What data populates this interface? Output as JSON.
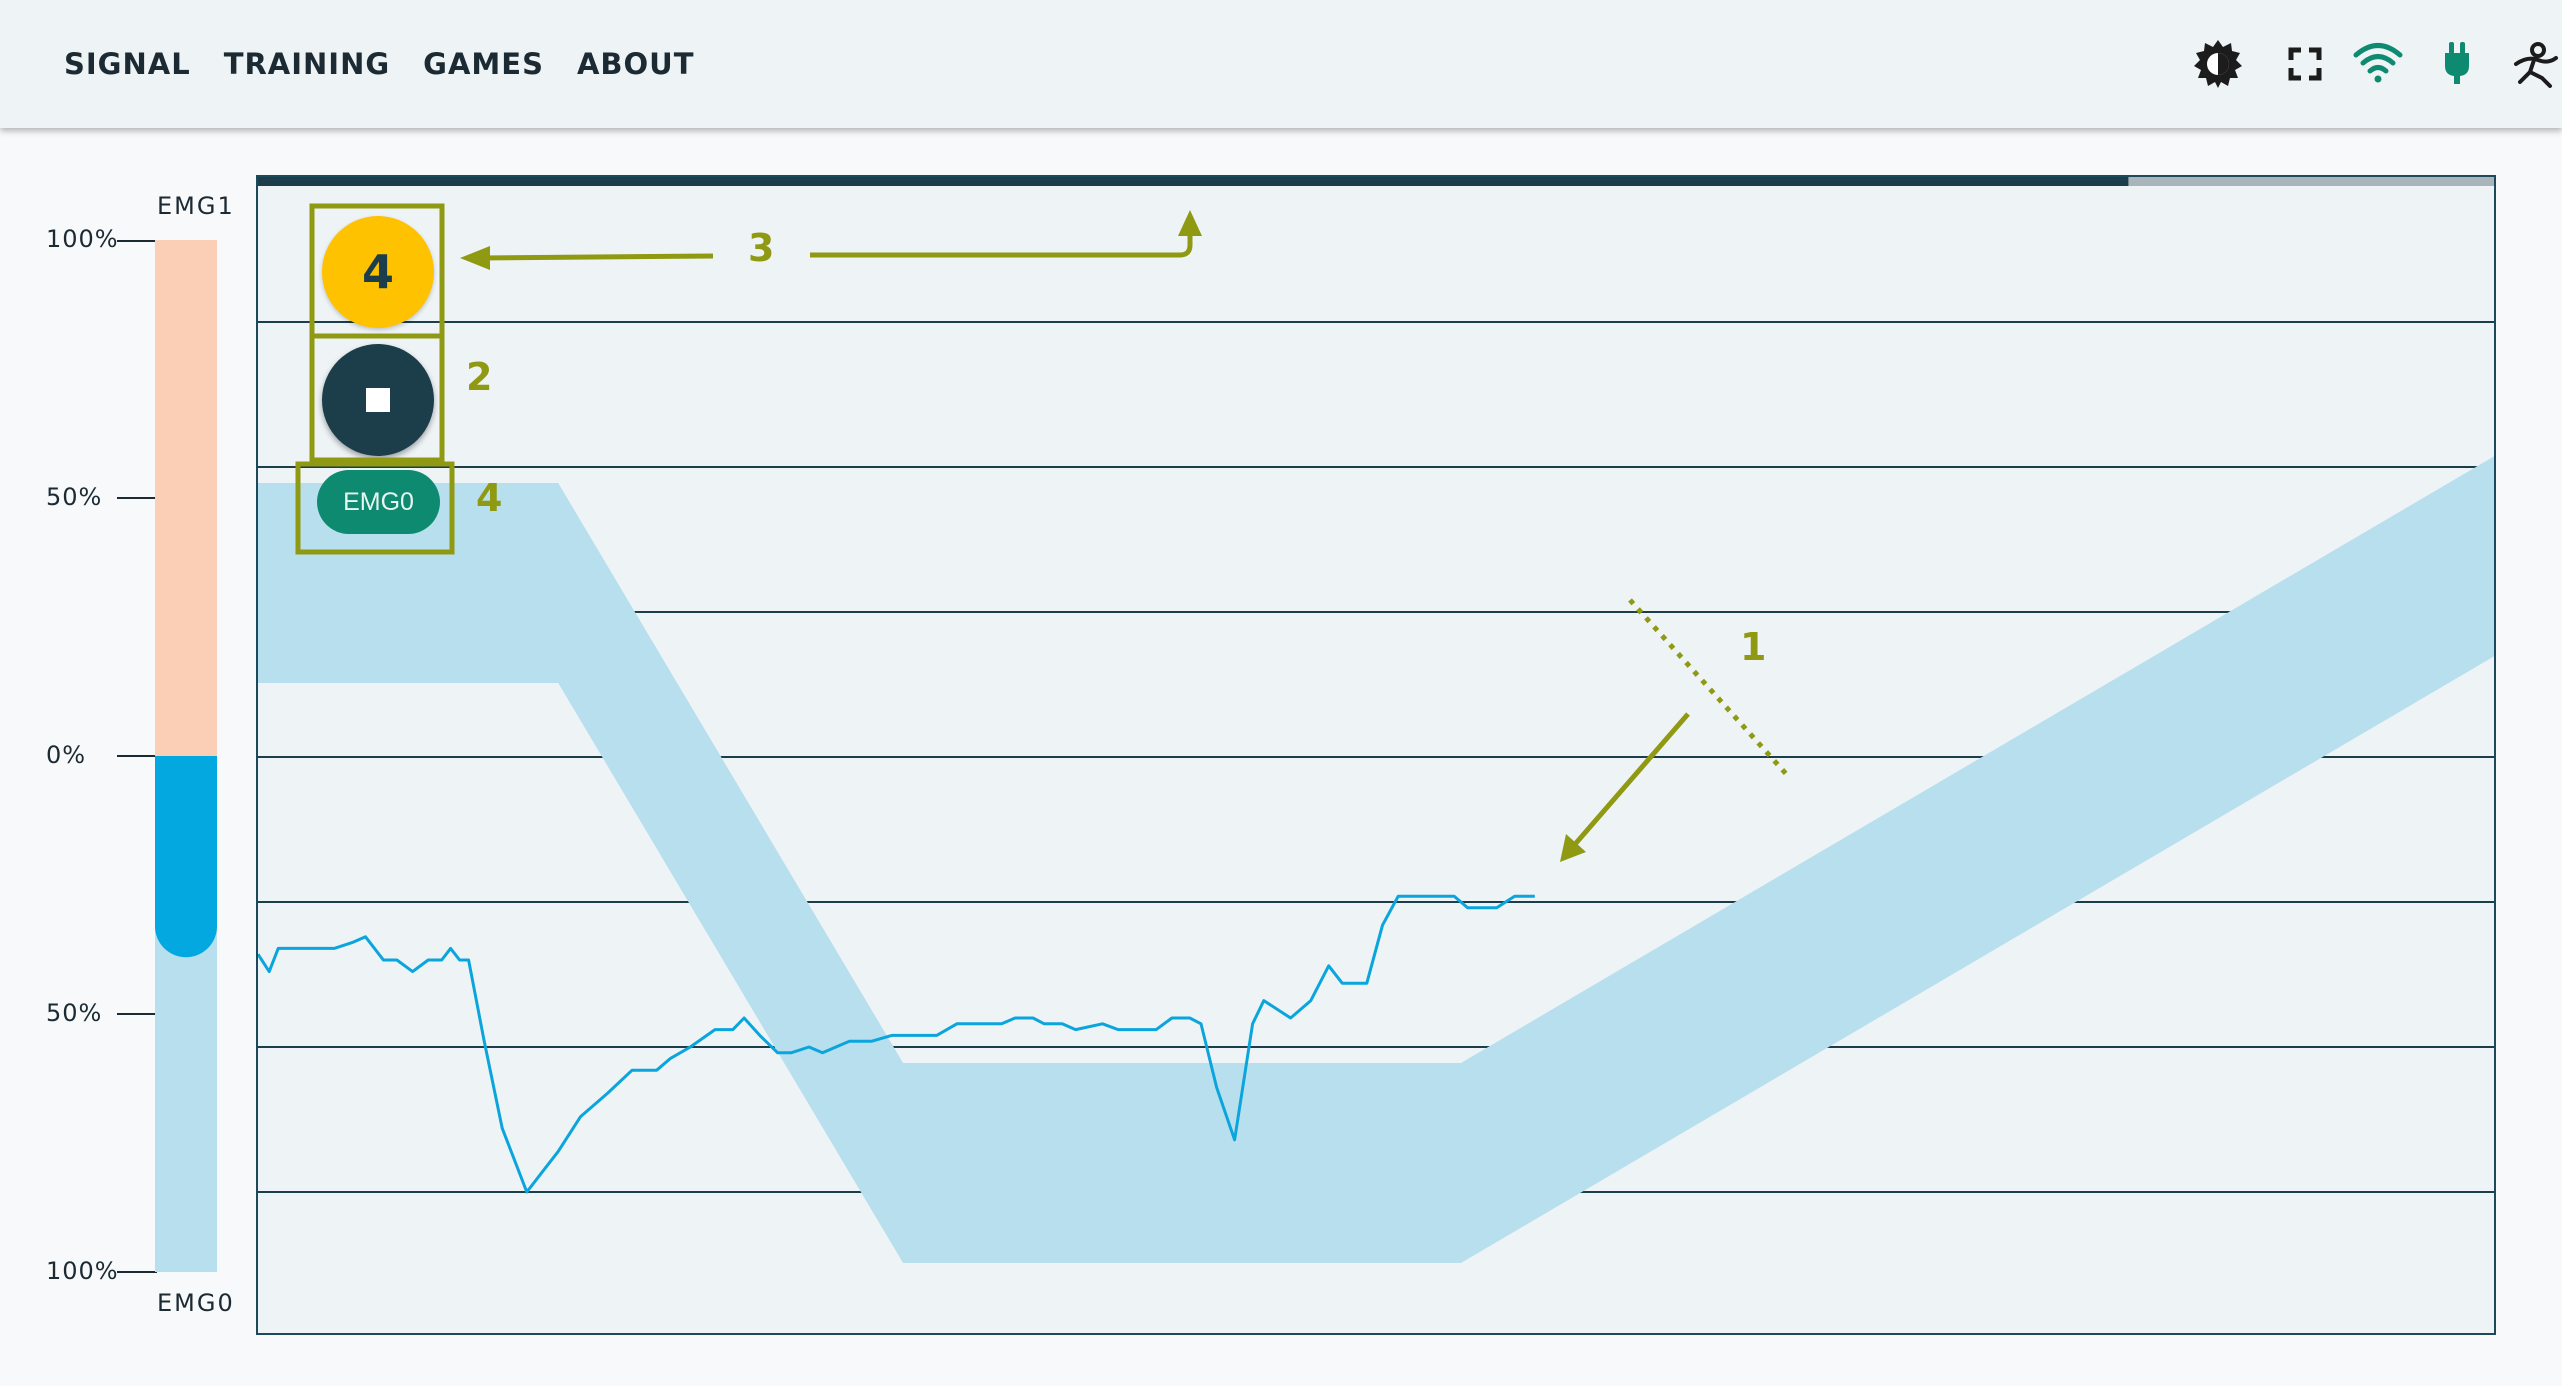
{
  "nav": {
    "items": [
      "SIGNAL",
      "TRAINING",
      "GAMES",
      "ABOUT"
    ]
  },
  "toolbar_icons": [
    "theme-toggle-icon",
    "fullscreen-icon",
    "wifi-icon",
    "power-plug-icon",
    "settings-figure-icon"
  ],
  "colors": {
    "accent_green": "#0e8a70",
    "signal_blue": "#0aa5dd",
    "target_band": "#b8dfee",
    "bar_upper": "#fbcfb5",
    "bar_lower": "#b8dfee",
    "bar_fill": "#02a8df",
    "dark": "#1c3d4a",
    "count_yellow": "#ffc200",
    "annotation": "#8f9a12"
  },
  "level_bar": {
    "top_label": "EMG1",
    "bottom_label": "EMG0",
    "ticks": [
      "100%",
      "50%",
      "0%",
      "50%",
      "100%"
    ],
    "current_value_percent": -39
  },
  "controls": {
    "countdown": "4",
    "stop_label": "",
    "channel_chip": "EMG0"
  },
  "progress": {
    "fraction": 0.835
  },
  "annotations": [
    "1",
    "2",
    "3",
    "4"
  ],
  "chart_data": {
    "type": "line",
    "ylim": [
      -100,
      100
    ],
    "xlim": [
      0,
      100
    ],
    "grid": true,
    "target_band": {
      "centerline": [
        [
          0,
          30
        ],
        [
          13.4,
          30
        ],
        [
          28.8,
          -70
        ],
        [
          53.7,
          -70
        ],
        [
          100,
          35
        ]
      ],
      "note": ""
    },
    "series": [
      {
        "values": [
          [
            0,
            -34
          ],
          [
            0.5,
            -37
          ],
          [
            0.9,
            -33
          ],
          [
            2.3,
            -33
          ],
          [
            3.4,
            -33
          ],
          [
            4.2,
            -32
          ],
          [
            4.8,
            -31
          ],
          [
            5.2,
            -33
          ],
          [
            5.6,
            -35
          ],
          [
            6.2,
            -35
          ],
          [
            6.9,
            -37
          ],
          [
            7.6,
            -35
          ],
          [
            8.2,
            -35
          ],
          [
            8.6,
            -33
          ],
          [
            9,
            -35
          ],
          [
            9.4,
            -35
          ],
          [
            10.1,
            -49
          ],
          [
            10.9,
            -64
          ],
          [
            12,
            -75
          ],
          [
            12.8,
            -71
          ],
          [
            13.4,
            -68
          ],
          [
            14.4,
            -62
          ],
          [
            15.6,
            -58
          ],
          [
            16.7,
            -54
          ],
          [
            17.8,
            -54
          ],
          [
            18.4,
            -52
          ],
          [
            19.3,
            -50
          ],
          [
            20.4,
            -47
          ],
          [
            21.2,
            -47
          ],
          [
            21.7,
            -45
          ],
          [
            22.4,
            -48
          ],
          [
            23.2,
            -51
          ],
          [
            23.8,
            -51
          ],
          [
            24.6,
            -50
          ],
          [
            25.2,
            -51
          ],
          [
            26.4,
            -49
          ],
          [
            27.4,
            -49
          ],
          [
            28.3,
            -48
          ],
          [
            30.3,
            -48
          ],
          [
            31.2,
            -46
          ],
          [
            33.2,
            -46
          ],
          [
            33.8,
            -45
          ],
          [
            34.6,
            -45
          ],
          [
            35.1,
            -46
          ],
          [
            35.9,
            -46
          ],
          [
            36.5,
            -47
          ],
          [
            37.7,
            -46
          ],
          [
            38.4,
            -47
          ],
          [
            40.1,
            -47
          ],
          [
            40.8,
            -45
          ],
          [
            41.6,
            -45
          ],
          [
            42.1,
            -46
          ],
          [
            42.8,
            -57
          ],
          [
            43.6,
            -66
          ],
          [
            44.4,
            -46
          ],
          [
            44.9,
            -42
          ],
          [
            46.1,
            -45
          ],
          [
            47,
            -42
          ],
          [
            47.8,
            -36
          ],
          [
            48.4,
            -39
          ],
          [
            49.5,
            -39
          ],
          [
            50.2,
            -29
          ],
          [
            50.9,
            -24
          ],
          [
            53.4,
            -24
          ],
          [
            54,
            -26
          ],
          [
            55.3,
            -26
          ],
          [
            56.1,
            -24
          ],
          [
            57,
            -24
          ]
        ]
      }
    ]
  }
}
